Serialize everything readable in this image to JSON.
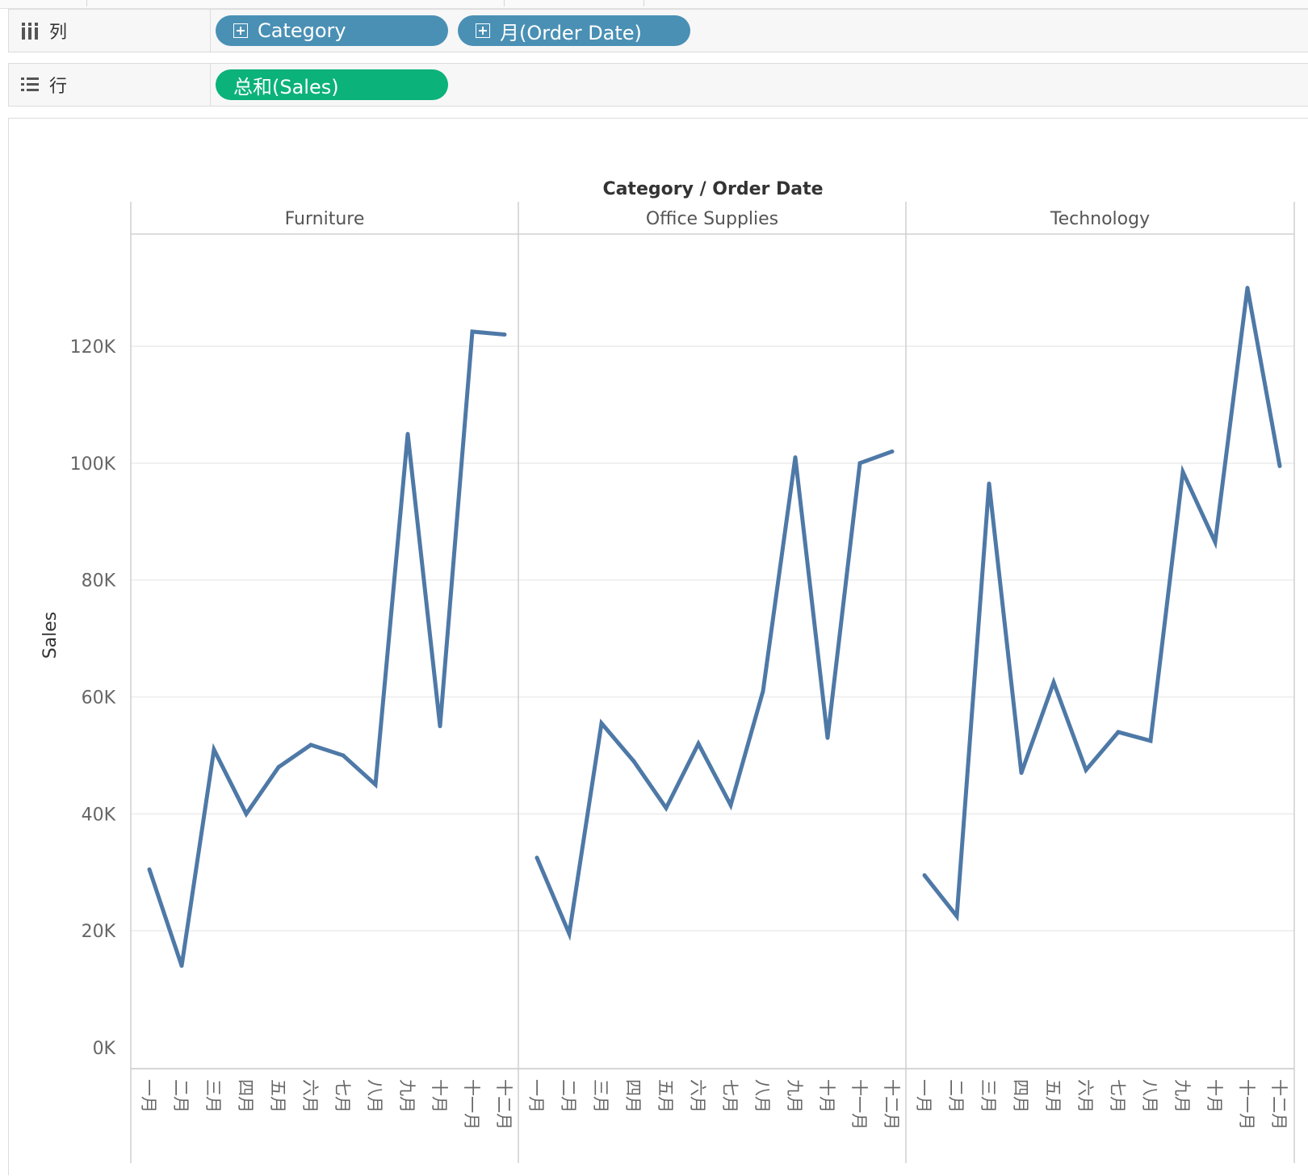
{
  "shelves": {
    "columns": {
      "label": "列",
      "pills": [
        "Category",
        "月(Order Date)"
      ]
    },
    "rows": {
      "label": "行",
      "pills": [
        "总和(Sales)"
      ]
    }
  },
  "colors": {
    "line": "#4e79a7",
    "dimension_pill": "#4a90b5",
    "measure_pill": "#0bb27a"
  },
  "chart_data": {
    "type": "line",
    "header": "Category / Order Date",
    "ylabel": "Sales",
    "ylim": [
      0,
      140000
    ],
    "yticks": [
      0,
      20000,
      40000,
      60000,
      80000,
      100000,
      120000
    ],
    "ytick_labels": [
      "0K",
      "20K",
      "40K",
      "60K",
      "80K",
      "100K",
      "120K"
    ],
    "grid": true,
    "categories": [
      "一月",
      "二月",
      "三月",
      "四月",
      "五月",
      "六月",
      "七月",
      "八月",
      "九月",
      "十月",
      "十一月",
      "十二月"
    ],
    "panels": [
      {
        "name": "Furniture",
        "values": [
          30500,
          14000,
          51000,
          40000,
          48000,
          51800,
          50000,
          45000,
          105000,
          55000,
          122500,
          122000
        ]
      },
      {
        "name": "Office Supplies",
        "values": [
          32500,
          19500,
          55500,
          49000,
          41000,
          52000,
          41500,
          61000,
          101000,
          53000,
          100000,
          102000
        ]
      },
      {
        "name": "Technology",
        "values": [
          29500,
          22500,
          96500,
          47000,
          62500,
          47500,
          54000,
          52500,
          98500,
          86500,
          130000,
          99500
        ]
      }
    ]
  }
}
